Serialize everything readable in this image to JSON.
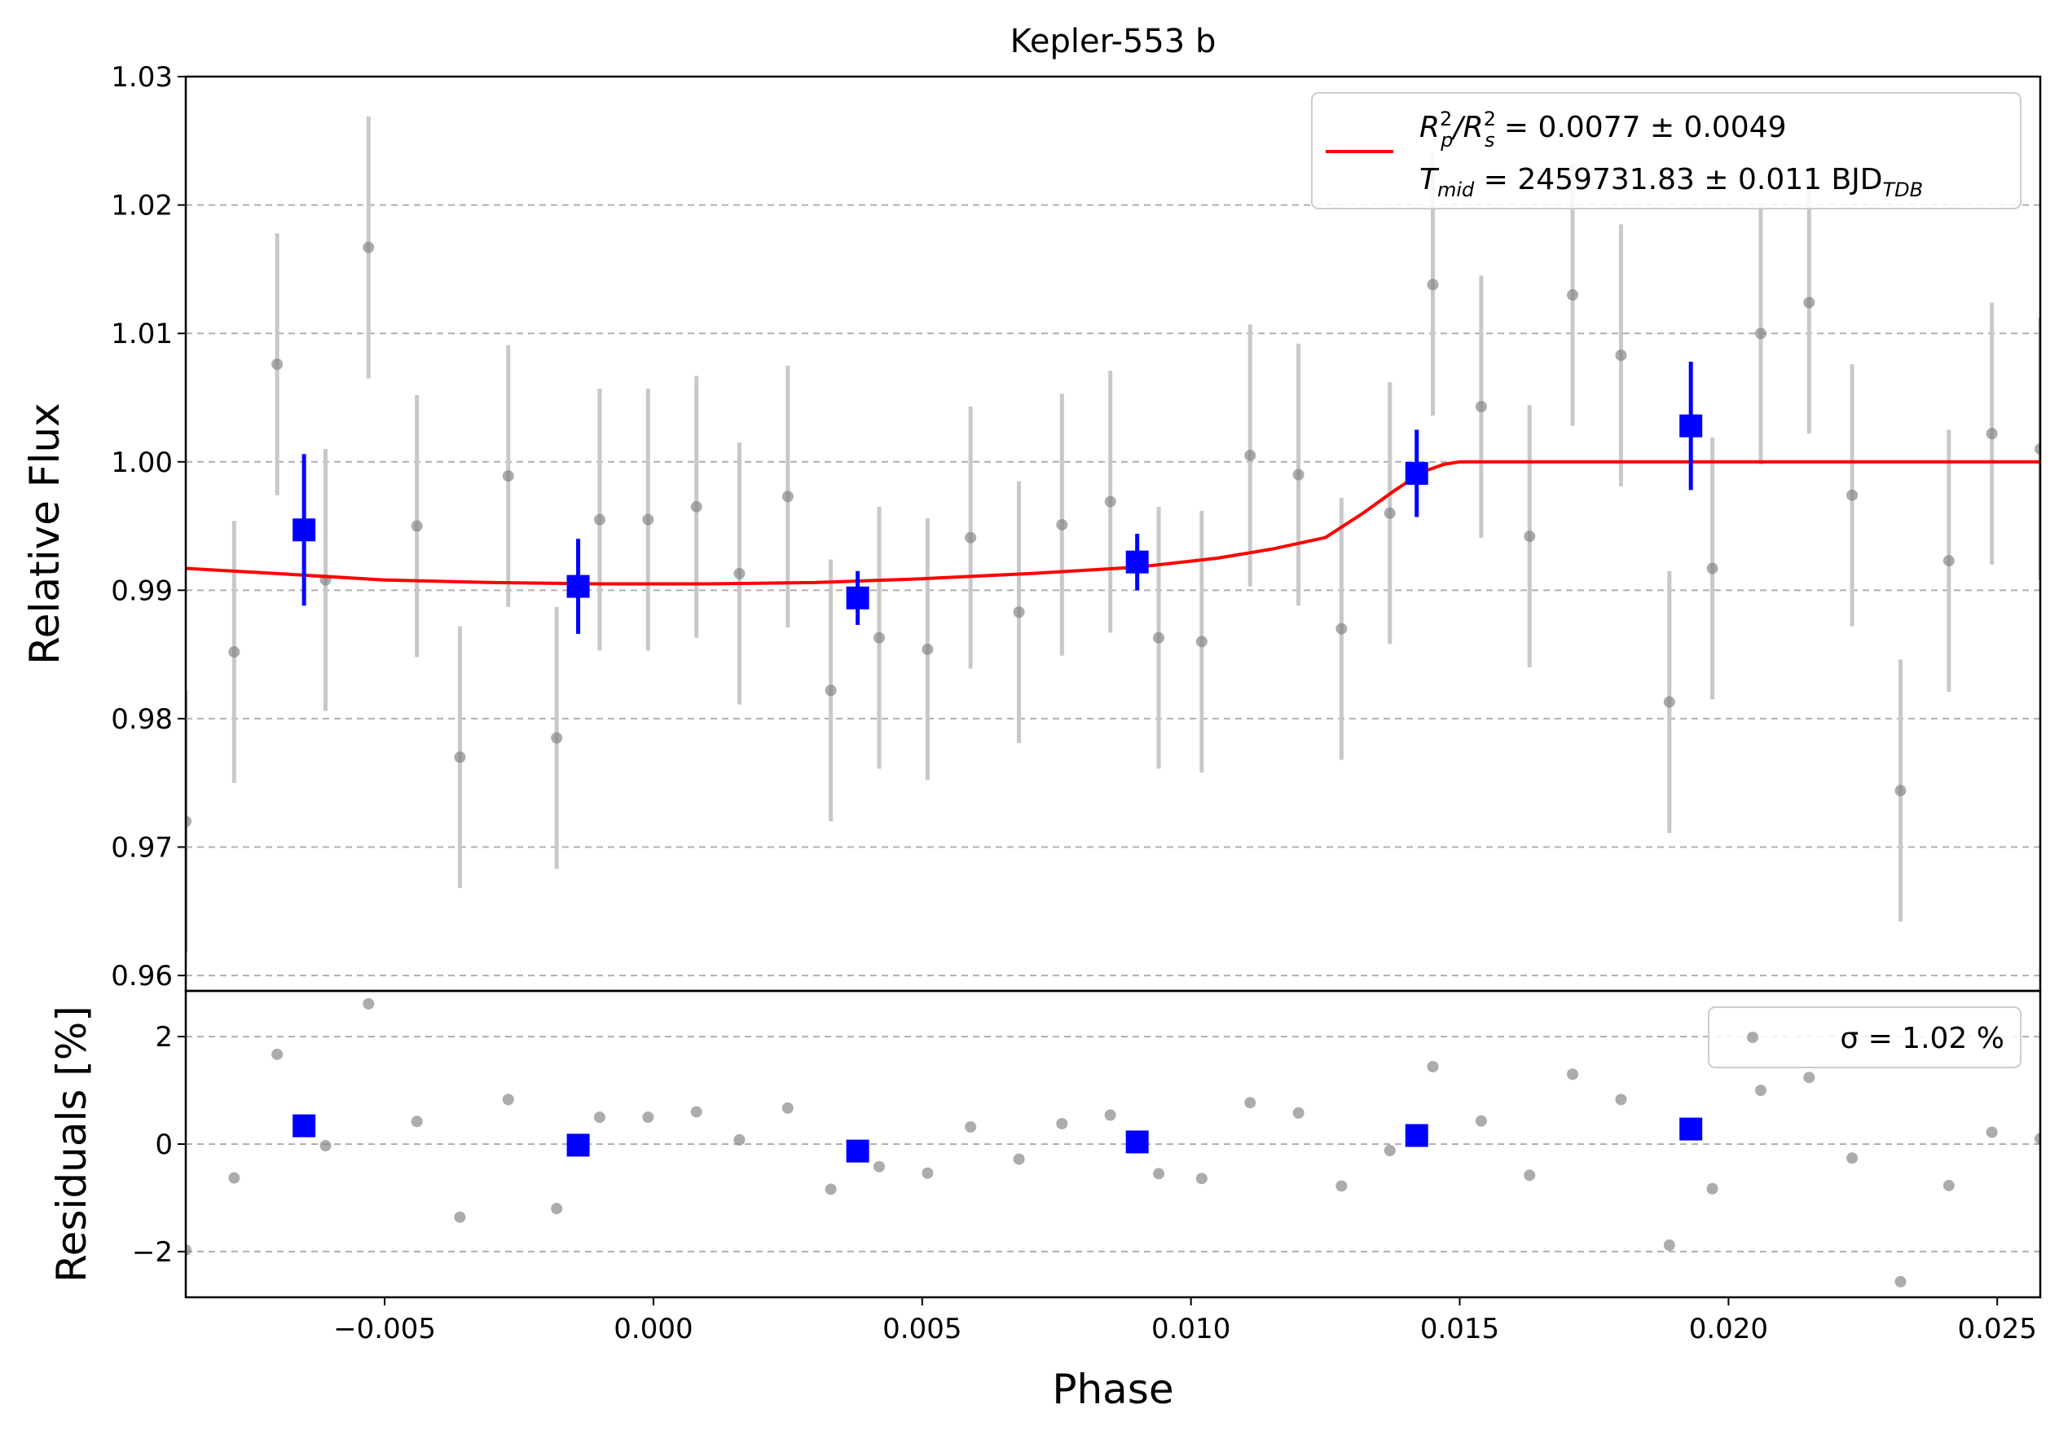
{
  "chart_data": {
    "type": "scatter",
    "title": "Kepler-553 b",
    "xlabel": "Phase",
    "xlim": [
      -0.0087,
      0.0258
    ],
    "x_ticks": [
      -0.005,
      0.0,
      0.005,
      0.01,
      0.015,
      0.02,
      0.025
    ],
    "x_tick_labels": [
      "−0.005",
      "0.000",
      "0.005",
      "0.010",
      "0.015",
      "0.020",
      "0.025"
    ],
    "top_panel": {
      "ylabel": "Relative Flux",
      "ylim": [
        0.9588,
        1.03
      ],
      "y_ticks": [
        0.96,
        0.97,
        0.98,
        0.99,
        1.0,
        1.01,
        1.02,
        1.03
      ],
      "y_tick_labels": [
        "0.96",
        "0.97",
        "0.98",
        "0.99",
        "1.00",
        "1.01",
        "1.02",
        "1.03"
      ],
      "grid": "horizontal dashed",
      "legend_position": "top-right",
      "legend": {
        "fit_label_line1": {
          "pre": "R",
          "sup1": "2",
          "sub1": "p",
          "mid": "/R",
          "sup2": "2",
          "sub2": "s",
          "post": " = 0.0077 ± 0.0049"
        },
        "fit_label_line2": {
          "pre": "T",
          "sub1": "mid",
          "mid": " = 2459731.83 ± 0.011 BJD",
          "sub2": "TDB"
        }
      },
      "raw_data": {
        "x": [
          -0.0087,
          -0.0078,
          -0.007,
          -0.0061,
          -0.0053,
          -0.0044,
          -0.0036,
          -0.0027,
          -0.0018,
          -0.001,
          -0.0001,
          0.0008,
          0.0016,
          0.0025,
          0.0033,
          0.0042,
          0.0051,
          0.0059,
          0.0068,
          0.0076,
          0.0085,
          0.0094,
          0.0102,
          0.0111,
          0.012,
          0.0128,
          0.0137,
          0.0145,
          0.0154,
          0.0163,
          0.0171,
          0.018,
          0.0189,
          0.0197,
          0.0206,
          0.0215,
          0.0223,
          0.0232,
          0.0241,
          0.0249,
          0.0258
        ],
        "y": [
          0.972,
          0.9852,
          1.0076,
          0.9908,
          1.0167,
          0.995,
          0.977,
          0.9989,
          0.9785,
          0.9955,
          0.9955,
          0.9965,
          0.9913,
          0.9973,
          0.9822,
          0.9863,
          0.9854,
          0.9941,
          0.9883,
          0.9951,
          0.9969,
          0.9863,
          0.986,
          1.0005,
          0.999,
          0.987,
          0.996,
          1.0138,
          1.0043,
          0.9942,
          1.013,
          1.0083,
          0.9813,
          0.9917,
          1.01,
          1.0124,
          0.9974,
          0.9744,
          0.9923,
          1.0022,
          1.001
        ],
        "yerr": 0.0102
      },
      "binned_data": {
        "x": [
          -0.0065,
          -0.0014,
          0.0038,
          0.009,
          0.0142,
          0.0193
        ],
        "y": [
          0.9947,
          0.9903,
          0.9894,
          0.9922,
          0.9991,
          1.0028
        ],
        "yerr": [
          0.0059,
          0.0037,
          0.0021,
          0.0022,
          0.0034,
          0.005
        ]
      },
      "model_fit": {
        "x": [
          -0.0087,
          -0.007,
          -0.005,
          -0.003,
          -0.001,
          0.001,
          0.003,
          0.005,
          0.007,
          0.009,
          0.0105,
          0.0115,
          0.0125,
          0.0132,
          0.0138,
          0.0143,
          0.0147,
          0.015,
          0.0258
        ],
        "y": [
          0.9917,
          0.9913,
          0.9908,
          0.9906,
          0.9905,
          0.9905,
          0.9906,
          0.9909,
          0.9913,
          0.9918,
          0.9925,
          0.9932,
          0.9941,
          0.996,
          0.9978,
          0.9992,
          0.9998,
          1.0,
          1.0
        ],
        "color": "#ff0000"
      }
    },
    "residual_panel": {
      "ylabel": "Residuals [%]",
      "ylim": [
        -2.85,
        2.85
      ],
      "y_ticks": [
        -2,
        0,
        2
      ],
      "y_tick_labels": [
        "−2",
        "0",
        "2"
      ],
      "grid": "horizontal dashed",
      "legend_position": "top-right",
      "legend_label": "σ = 1.02 %",
      "raw_residuals": [
        -1.97,
        -0.63,
        1.67,
        -0.03,
        2.61,
        0.42,
        -1.36,
        0.83,
        -1.2,
        0.5,
        0.5,
        0.6,
        0.08,
        0.67,
        -0.84,
        -0.42,
        -0.54,
        0.32,
        -0.28,
        0.38,
        0.54,
        -0.55,
        -0.64,
        0.77,
        0.58,
        -0.78,
        -0.12,
        1.44,
        0.43,
        -0.58,
        1.3,
        0.83,
        -1.88,
        -0.83,
        1.0,
        1.24,
        -0.26,
        -2.56,
        -0.77,
        0.22,
        0.1
      ],
      "binned_residuals": [
        0.34,
        -0.02,
        -0.13,
        0.04,
        0.16,
        0.28
      ]
    },
    "colors": {
      "raw_points": "#808080",
      "raw_errorbars": "#c8c8c8",
      "binned": "#0000ff",
      "model": "#ff0000",
      "grid": "#b0b0b0"
    }
  }
}
